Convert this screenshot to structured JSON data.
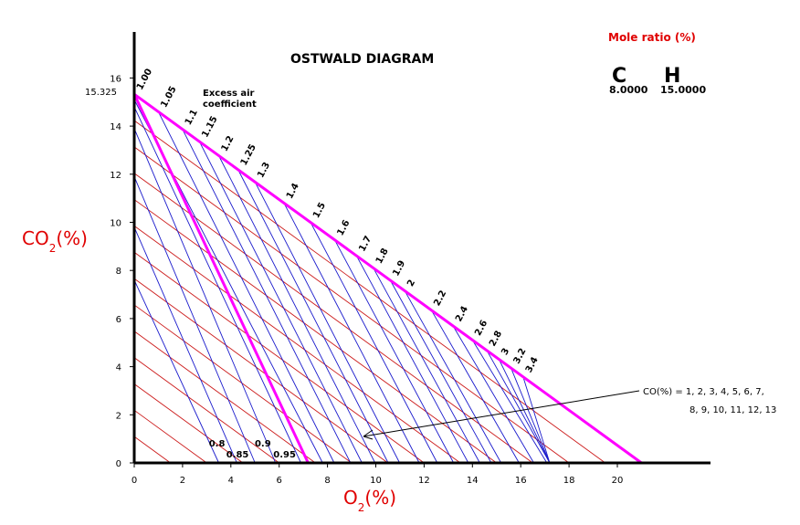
{
  "chart_data": {
    "type": "line",
    "title": "OSTWALD DIAGRAM",
    "xlabel_main": "O",
    "xlabel_sub": "2",
    "xlabel_unit": "(%)",
    "ylabel_main": "CO",
    "ylabel_sub": "2",
    "ylabel_unit": "(%)",
    "xlim": [
      0,
      24
    ],
    "ylim": [
      0,
      18
    ],
    "xticks": [
      "0",
      "2",
      "4",
      "6",
      "8",
      "10",
      "12",
      "14",
      "16",
      "18",
      "20"
    ],
    "yticks": [
      "0",
      "2",
      "4",
      "6",
      "8",
      "10",
      "12",
      "14",
      "16"
    ],
    "co2_max_label": "15.325",
    "co2_max": 15.325,
    "o2_max": 21,
    "complete_combustion_line": {
      "from": [
        0,
        15.325
      ],
      "to": [
        21,
        0
      ]
    },
    "stoich_line": {
      "from": [
        0,
        15.325
      ],
      "to": [
        7.2,
        0
      ]
    },
    "co_values": [
      1,
      2,
      3,
      4,
      5,
      6,
      7,
      8,
      9,
      10,
      11,
      12,
      13
    ],
    "co_note_line1": "CO(%) = 1, 2, 3, 4, 5, 6, 7,",
    "co_note_line2": "8, 9, 10, 11, 12, 13",
    "excess_air_title_1": "Excess air",
    "excess_air_title_2": "coefficient",
    "excess_air_coefficients": [
      "1.00",
      "1.05",
      "1.1",
      "1.15",
      "1.2",
      "1.25",
      "1.3",
      "1.4",
      "1.5",
      "1.6",
      "1.7",
      "1.8",
      "1.9",
      "2",
      "2.2",
      "2.4",
      "2.6",
      "2.8",
      "3",
      "3.2",
      "3.4"
    ],
    "excess_air_x": [
      0,
      1.0,
      2.0,
      2.7,
      3.5,
      4.3,
      5.0,
      6.2,
      7.3,
      8.3,
      9.2,
      9.9,
      10.6,
      11.2,
      12.3,
      13.2,
      14.0,
      14.6,
      15.1,
      15.6,
      16.1
    ],
    "sub_coefficients": [
      "0.8",
      "0.85",
      "0.9",
      "0.95"
    ],
    "sub_coefficients_x": [
      3.5,
      4.35,
      5.4,
      6.3
    ],
    "colors": {
      "boundary": "#ff00ff",
      "iso_air": "#1a1acc",
      "iso_co": "#cc1a1a",
      "axis_label": "#e00000"
    }
  },
  "mole_ratio": {
    "title": "Mole ratio (%)",
    "c_label": "C",
    "h_label": "H",
    "c_value": "8.0000",
    "h_value": "15.0000"
  }
}
